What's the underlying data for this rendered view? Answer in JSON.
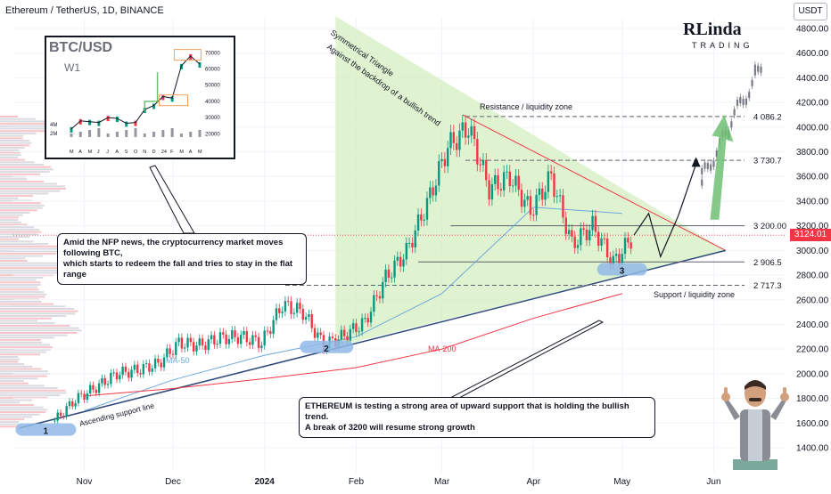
{
  "header": {
    "title": "Ethereum / TetherUS, 1D, BINANCE"
  },
  "currency": "USDT",
  "current_price": "3124.01",
  "logo": {
    "brand_top": "RLinda",
    "brand_bottom": "TRADING"
  },
  "annotations": {
    "triangle_title": "Symmetrical Triangle",
    "triangle_sub": "Against the backdrop of a bullish trend",
    "resistance": "Resistance / liquidity zone",
    "support": "Support / liquidity zone",
    "ma50": "MA-50",
    "ma200": "MA-200",
    "ascending": "Ascending support line",
    "touch1": "1",
    "touch2": "2",
    "touch3": "3"
  },
  "callouts": {
    "nfp_line1": "Amid the NFP news, the cryptocurrency market moves following BTC,",
    "nfp_line2": "which starts to redeem the fall and tries to stay in the flat range",
    "eth_line1": "ETHEREUM is testing a strong area of upward support that is holding the bullish trend.",
    "eth_line2": "A break of 3200 will resume strong growth"
  },
  "levels": [
    {
      "value": 4086.2,
      "label": "4 086.2",
      "style": "dashed"
    },
    {
      "value": 3730.7,
      "label": "3 730.7",
      "style": "dashed"
    },
    {
      "value": 3200.0,
      "label": "3 200.00",
      "style": "solid"
    },
    {
      "value": 2906.5,
      "label": "2 906.5",
      "style": "solid"
    },
    {
      "value": 2717.3,
      "label": "2 717.3",
      "style": "dashed"
    }
  ],
  "colors": {
    "up": "#089981",
    "down": "#f23645",
    "triangle_fill": "#d6efc2",
    "resistance_line": "#f23645",
    "support_line": "#2e4a7a",
    "ma50": "#6fa8dc",
    "ma200": "#f23645",
    "touch_zone": "#90b8e8",
    "forecast_arrow": "#6fbf73"
  },
  "inset": {
    "title": "BTC/USD",
    "timeframe": "W1",
    "y_ticks": [
      "70000",
      "60000",
      "50000",
      "40000",
      "30000",
      "20000"
    ],
    "vol_ticks": [
      "4M",
      "2M"
    ],
    "x_ticks": [
      "M",
      "A",
      "M",
      "J",
      "J",
      "A",
      "S",
      "O",
      "N",
      "D",
      "24",
      "F",
      "M",
      "A",
      "M"
    ],
    "chart_data": {
      "type": "line",
      "title": "BTC/USD",
      "x": [
        "M",
        "A",
        "M",
        "J",
        "J",
        "A",
        "S",
        "O",
        "N",
        "D",
        "24",
        "F",
        "M",
        "A",
        "M"
      ],
      "values": [
        23000,
        28000,
        27500,
        27000,
        30000,
        29500,
        26500,
        27000,
        35000,
        37500,
        43000,
        42000,
        62000,
        68000,
        63000
      ],
      "ylim": [
        18000,
        74000
      ]
    }
  },
  "chart_data": {
    "type": "line",
    "title": "Ethereum / TetherUS, 1D, BINANCE",
    "xlabel": "",
    "ylabel": "",
    "x_ticks": [
      "Nov",
      "Dec",
      "2024",
      "Feb",
      "Mar",
      "Apr",
      "May",
      "Jun"
    ],
    "y_ticks": [
      "4800.00",
      "4600.00",
      "4400.00",
      "4200.00",
      "4000.00",
      "3800.00",
      "3600.00",
      "3400.00",
      "3200.00",
      "3000.00",
      "2800.00",
      "2600.00",
      "2400.00",
      "2200.00",
      "2000.00",
      "1800.00",
      "1600.00",
      "1400.00"
    ],
    "ylim": [
      1300,
      4900
    ],
    "series": [
      {
        "name": "ETHUSDT",
        "x": [
          "2023-10-22",
          "2023-10-29",
          "2023-11-05",
          "2023-11-12",
          "2023-11-19",
          "2023-11-26",
          "2023-12-03",
          "2023-12-10",
          "2023-12-17",
          "2023-12-24",
          "2023-12-31",
          "2024-01-07",
          "2024-01-14",
          "2024-01-21",
          "2024-01-28",
          "2024-02-04",
          "2024-02-11",
          "2024-02-18",
          "2024-02-25",
          "2024-03-03",
          "2024-03-10",
          "2024-03-17",
          "2024-03-24",
          "2024-03-31",
          "2024-04-07",
          "2024-04-14",
          "2024-04-21",
          "2024-04-28",
          "2024-05-05"
        ],
        "values": [
          1620,
          1790,
          1890,
          2000,
          2030,
          2080,
          2250,
          2230,
          2290,
          2300,
          2250,
          2560,
          2500,
          2230,
          2310,
          2420,
          2780,
          2990,
          3380,
          3840,
          4000,
          3500,
          3600,
          3320,
          3600,
          3050,
          3200,
          2900,
          3124
        ]
      },
      {
        "name": "MA-50",
        "x": [
          "2023-11-01",
          "2023-12-01",
          "2024-01-01",
          "2024-02-01",
          "2024-03-01",
          "2024-04-01",
          "2024-05-01"
        ],
        "values": [
          1700,
          1950,
          2150,
          2300,
          2650,
          3350,
          3300
        ]
      },
      {
        "name": "MA-200",
        "x": [
          "2023-11-01",
          "2023-12-01",
          "2024-01-01",
          "2024-02-01",
          "2024-03-01",
          "2024-04-01",
          "2024-05-01"
        ],
        "values": [
          1820,
          1880,
          1960,
          2050,
          2200,
          2450,
          2650
        ]
      }
    ]
  }
}
